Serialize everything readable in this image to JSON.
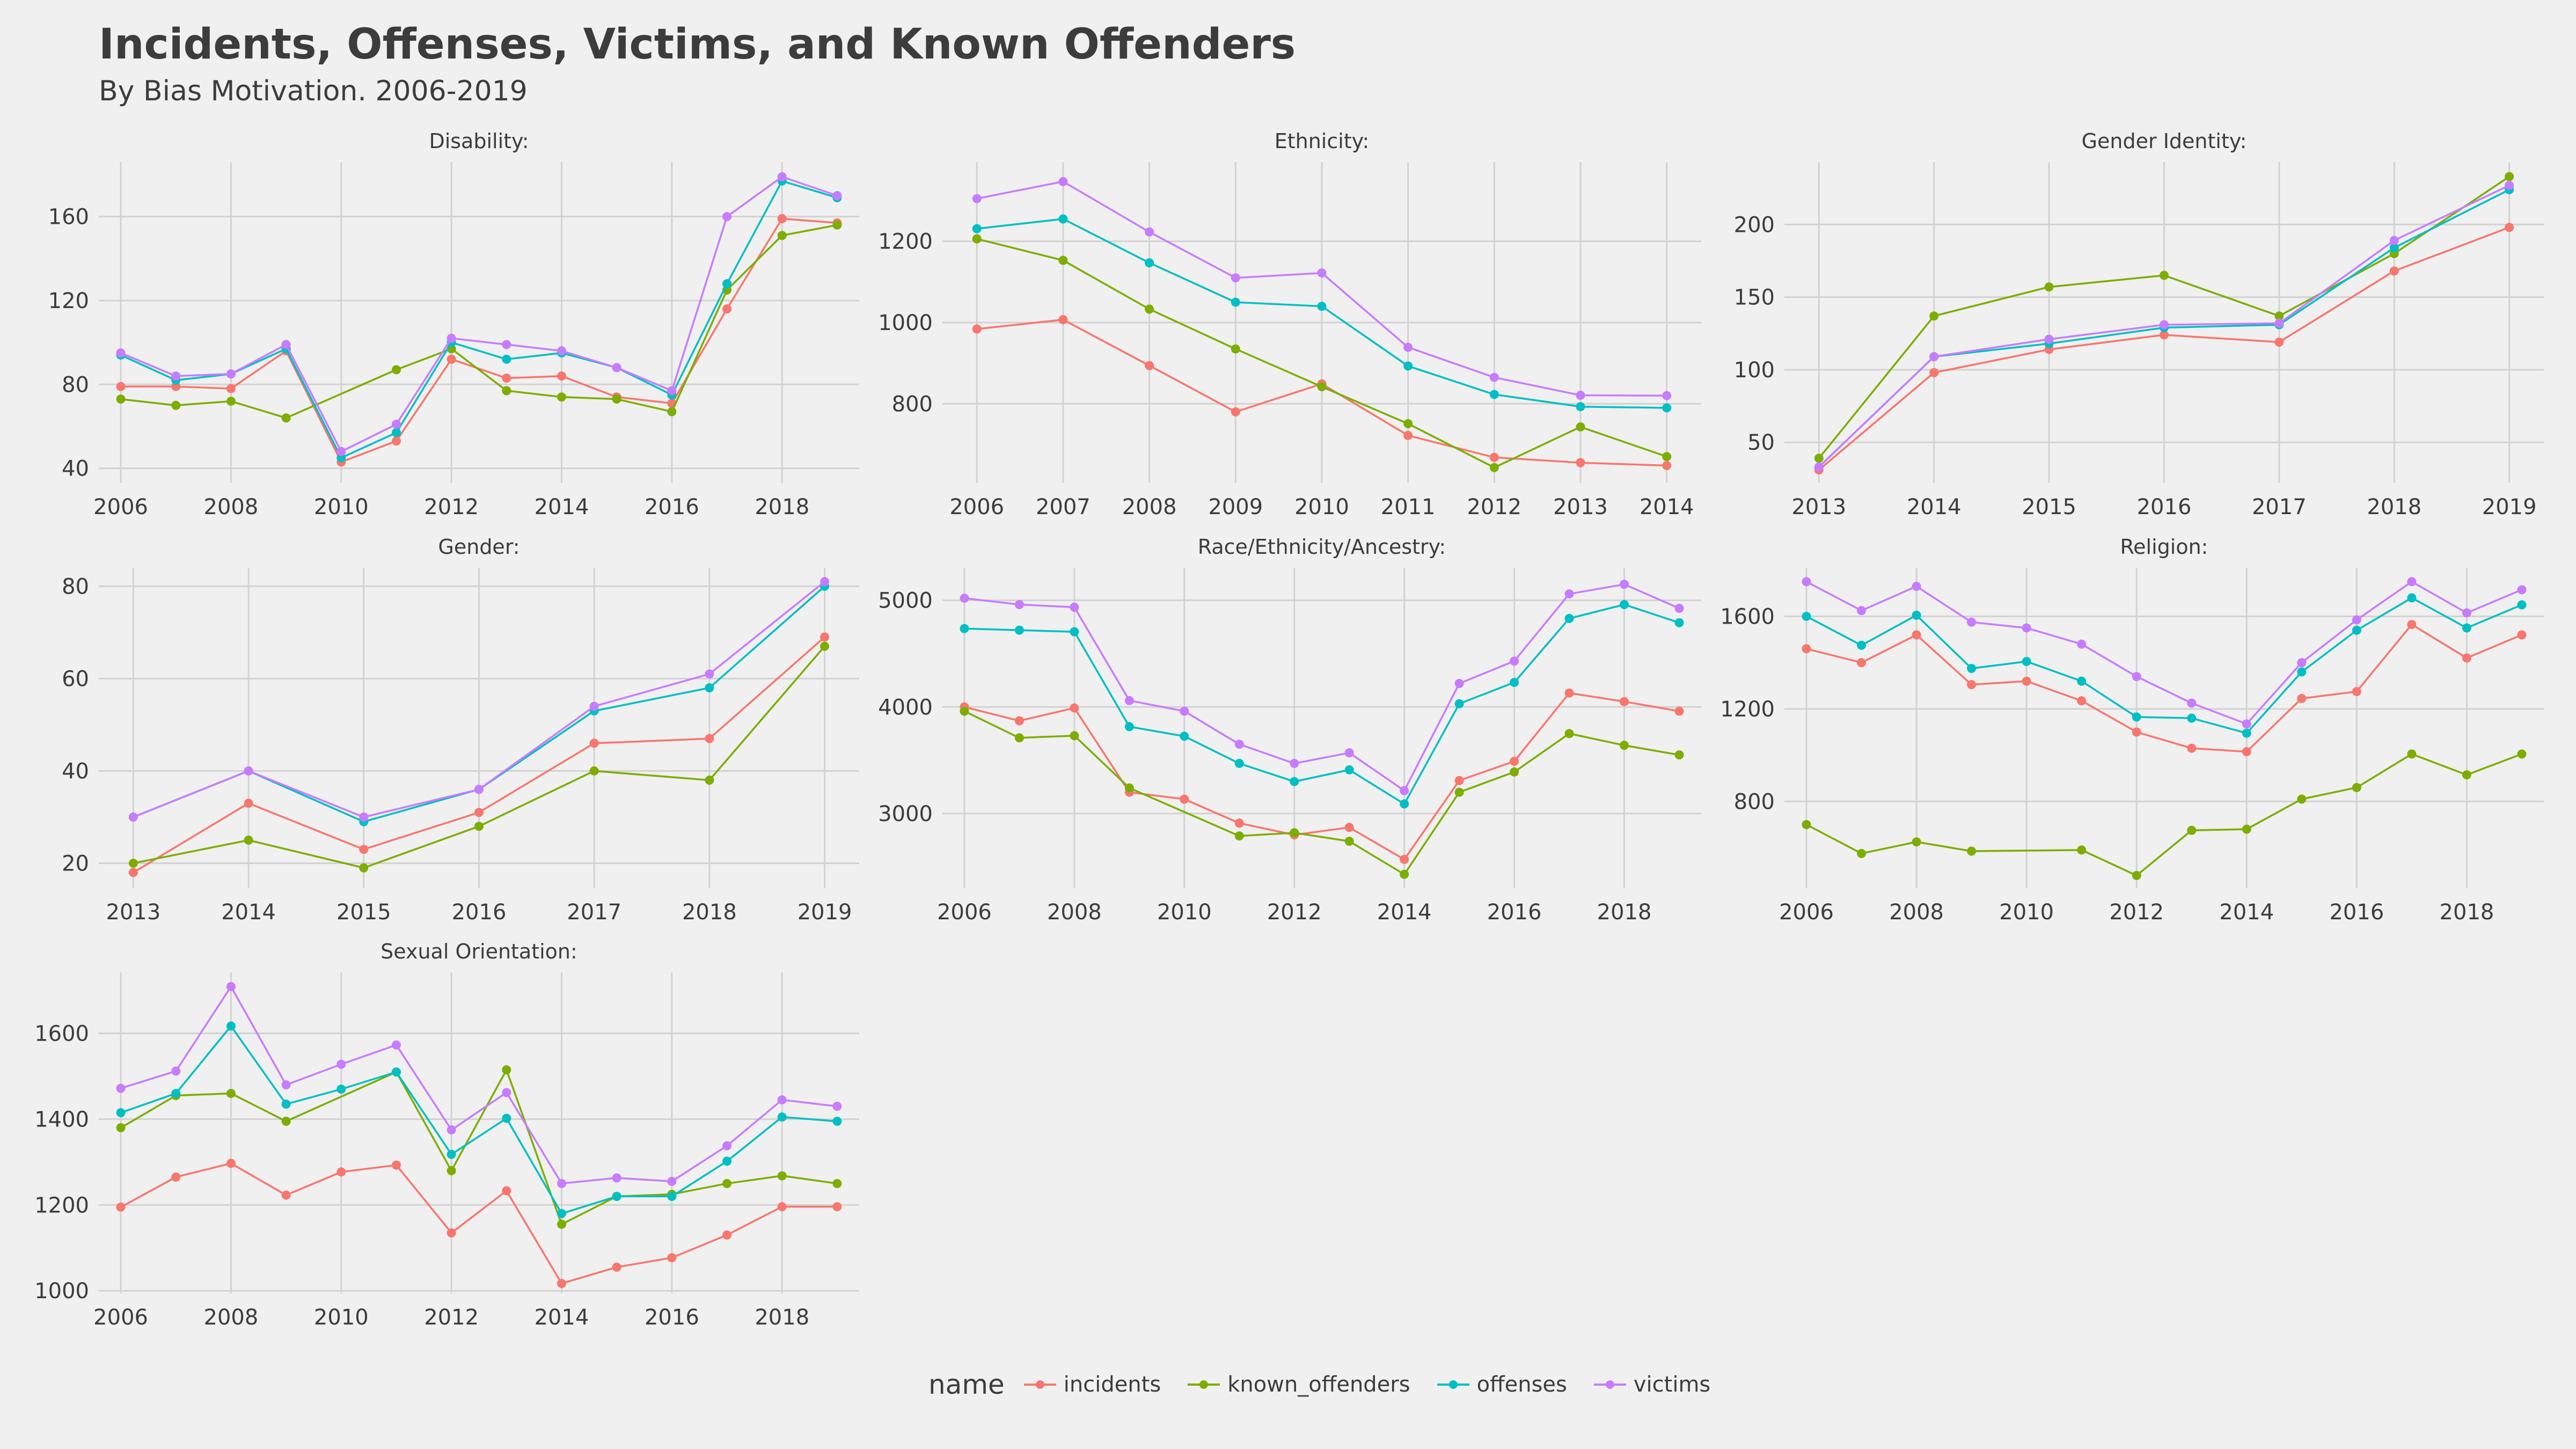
{
  "header": {
    "title": "Incidents, Offenses, Victims, and Known Offenders",
    "subtitle": "By Bias Motivation. 2006-2019"
  },
  "colors": {
    "incidents": "#f8766d",
    "known_offenders": "#7cae00",
    "offenses": "#00bfc4",
    "victims": "#c77cff",
    "grid": "#d2d2d2",
    "background": "#f0f0f0",
    "text": "#3c3c3c"
  },
  "legend": {
    "title": "name",
    "placement": "bottom",
    "items": [
      "incidents",
      "known_offenders",
      "offenses",
      "victims"
    ]
  },
  "chart_data": [
    {
      "type": "line",
      "title": "Disability:",
      "x": [
        2006,
        2007,
        2008,
        2009,
        2010,
        2011,
        2012,
        2013,
        2014,
        2015,
        2016,
        2017,
        2018,
        2019
      ],
      "xticks": [
        2006,
        2008,
        2010,
        2012,
        2014,
        2016,
        2018
      ],
      "yticks": [
        40,
        80,
        120,
        160
      ],
      "xlim": [
        2005.6,
        2019.4
      ],
      "ylim": [
        33,
        186
      ],
      "grid": true,
      "series": [
        {
          "name": "incidents",
          "values": [
            79,
            79,
            78,
            96,
            43,
            53,
            92,
            83,
            84,
            74,
            71,
            116,
            159,
            157
          ]
        },
        {
          "name": "known_offenders",
          "values": [
            73,
            70,
            72,
            64,
            null,
            87,
            97,
            77,
            74,
            73,
            67,
            125,
            151,
            156
          ]
        },
        {
          "name": "offenses",
          "values": [
            94,
            82,
            85,
            97,
            45,
            57,
            100,
            92,
            95,
            88,
            75,
            128,
            177,
            169
          ]
        },
        {
          "name": "victims",
          "values": [
            95,
            84,
            85,
            99,
            48,
            61,
            102,
            99,
            96,
            88,
            77,
            160,
            179,
            170
          ]
        }
      ]
    },
    {
      "type": "line",
      "title": "Ethnicity:",
      "x": [
        2006,
        2007,
        2008,
        2009,
        2010,
        2011,
        2012,
        2013,
        2014
      ],
      "xticks": [
        2006,
        2007,
        2008,
        2009,
        2010,
        2011,
        2012,
        2013,
        2014
      ],
      "yticks": [
        800,
        1000,
        1200
      ],
      "xlim": [
        2005.6,
        2014.4
      ],
      "ylim": [
        605,
        1395
      ],
      "grid": true,
      "series": [
        {
          "name": "incidents",
          "values": [
            984,
            1007,
            894,
            780,
            849,
            722,
            668,
            655,
            648
          ]
        },
        {
          "name": "known_offenders",
          "values": [
            1206,
            1153,
            1033,
            935,
            842,
            751,
            643,
            743,
            670
          ]
        },
        {
          "name": "offenses",
          "values": [
            1231,
            1255,
            1147,
            1050,
            1040,
            893,
            823,
            793,
            790
          ]
        },
        {
          "name": "victims",
          "values": [
            1305,
            1347,
            1223,
            1110,
            1122,
            939,
            865,
            821,
            820
          ]
        }
      ]
    },
    {
      "type": "line",
      "title": "Gender Identity:",
      "x": [
        2013,
        2014,
        2015,
        2016,
        2017,
        2018,
        2019
      ],
      "xticks": [
        2013,
        2014,
        2015,
        2016,
        2017,
        2018,
        2019
      ],
      "yticks": [
        50,
        100,
        150,
        200
      ],
      "xlim": [
        2012.7,
        2019.3
      ],
      "ylim": [
        22,
        243
      ],
      "grid": true,
      "series": [
        {
          "name": "incidents",
          "values": [
            31,
            98,
            114,
            124,
            119,
            168,
            198
          ]
        },
        {
          "name": "known_offenders",
          "values": [
            39,
            137,
            157,
            165,
            137,
            180,
            233
          ]
        },
        {
          "name": "offenses",
          "values": [
            33,
            109,
            118,
            129,
            131,
            184,
            224
          ]
        },
        {
          "name": "victims",
          "values": [
            33,
            109,
            121,
            131,
            132,
            189,
            227
          ]
        }
      ]
    },
    {
      "type": "line",
      "title": "Gender:",
      "x": [
        2013,
        2014,
        2015,
        2016,
        2017,
        2018,
        2019
      ],
      "xticks": [
        2013,
        2014,
        2015,
        2016,
        2017,
        2018,
        2019
      ],
      "yticks": [
        20,
        40,
        60,
        80
      ],
      "xlim": [
        2012.7,
        2019.3
      ],
      "ylim": [
        14.6,
        84
      ],
      "grid": true,
      "series": [
        {
          "name": "incidents",
          "values": [
            18,
            33,
            23,
            31,
            46,
            47,
            69
          ]
        },
        {
          "name": "known_offenders",
          "values": [
            20,
            25,
            19,
            28,
            40,
            38,
            67
          ]
        },
        {
          "name": "offenses",
          "values": [
            30,
            40,
            29,
            36,
            53,
            58,
            80
          ]
        },
        {
          "name": "victims",
          "values": [
            30,
            40,
            30,
            36,
            54,
            61,
            81
          ]
        }
      ]
    },
    {
      "type": "line",
      "title": "Race/Ethnicity/Ancestry:",
      "x": [
        2006,
        2007,
        2008,
        2009,
        2010,
        2011,
        2012,
        2013,
        2014,
        2015,
        2016,
        2017,
        2018,
        2019
      ],
      "xticks": [
        2006,
        2008,
        2010,
        2012,
        2014,
        2016,
        2018
      ],
      "yticks": [
        3000,
        4000,
        5000
      ],
      "xlim": [
        2005.6,
        2019.4
      ],
      "ylim": [
        2300,
        5305
      ],
      "grid": true,
      "series": [
        {
          "name": "incidents",
          "values": [
            4000,
            3870,
            3990,
            3200,
            3135,
            2910,
            2800,
            2870,
            2570,
            3310,
            3490,
            4130,
            4050,
            3960
          ]
        },
        {
          "name": "known_offenders",
          "values": [
            3960,
            3710,
            3730,
            3240,
            null,
            2790,
            2820,
            2740,
            2430,
            3200,
            3390,
            3750,
            3640,
            3550
          ]
        },
        {
          "name": "offenses",
          "values": [
            4735,
            4720,
            4705,
            3815,
            3725,
            3470,
            3300,
            3410,
            3090,
            4030,
            4230,
            4830,
            4960,
            4790
          ]
        },
        {
          "name": "victims",
          "values": [
            5020,
            4960,
            4935,
            4060,
            3960,
            3650,
            3470,
            3570,
            3215,
            4220,
            4430,
            5060,
            5150,
            4925
          ]
        }
      ]
    },
    {
      "type": "line",
      "title": "Religion:",
      "x": [
        2006,
        2007,
        2008,
        2009,
        2010,
        2011,
        2012,
        2013,
        2014,
        2015,
        2016,
        2017,
        2018,
        2019
      ],
      "xticks": [
        2006,
        2008,
        2010,
        2012,
        2014,
        2016,
        2018
      ],
      "yticks": [
        800,
        1200,
        1600
      ],
      "xlim": [
        2005.6,
        2019.4
      ],
      "ylim": [
        425,
        1810
      ],
      "grid": true,
      "series": [
        {
          "name": "incidents",
          "values": [
            1460,
            1400,
            1520,
            1305,
            1320,
            1235,
            1100,
            1030,
            1015,
            1245,
            1275,
            1565,
            1420,
            1520
          ]
        },
        {
          "name": "known_offenders",
          "values": [
            700,
            575,
            625,
            585,
            null,
            590,
            480,
            675,
            680,
            810,
            860,
            1005,
            915,
            1005
          ]
        },
        {
          "name": "offenses",
          "values": [
            1600,
            1475,
            1605,
            1375,
            1405,
            1320,
            1165,
            1160,
            1095,
            1360,
            1540,
            1680,
            1550,
            1650
          ]
        },
        {
          "name": "victims",
          "values": [
            1750,
            1625,
            1730,
            1575,
            1550,
            1480,
            1340,
            1225,
            1135,
            1400,
            1585,
            1750,
            1615,
            1715
          ]
        }
      ]
    },
    {
      "type": "line",
      "title": "Sexual Orientation:",
      "x": [
        2006,
        2007,
        2008,
        2009,
        2010,
        2011,
        2012,
        2013,
        2014,
        2015,
        2016,
        2017,
        2018,
        2019
      ],
      "xticks": [
        2006,
        2008,
        2010,
        2012,
        2014,
        2016,
        2018
      ],
      "yticks": [
        1000,
        1200,
        1400,
        1600
      ],
      "xlim": [
        2005.6,
        2019.4
      ],
      "ylim": [
        994,
        1742
      ],
      "grid": true,
      "series": [
        {
          "name": "incidents",
          "values": [
            1195,
            1265,
            1297,
            1223,
            1277,
            1293,
            1135,
            1233,
            1017,
            1055,
            1077,
            1130,
            1196,
            1196
          ]
        },
        {
          "name": "known_offenders",
          "values": [
            1380,
            1455,
            1460,
            1395,
            null,
            1510,
            1280,
            1515,
            1155,
            1220,
            1225,
            1250,
            1268,
            1250
          ]
        },
        {
          "name": "offenses",
          "values": [
            1415,
            1460,
            1617,
            1435,
            1470,
            1510,
            1318,
            1402,
            1180,
            1220,
            1220,
            1302,
            1405,
            1395
          ]
        },
        {
          "name": "victims",
          "values": [
            1472,
            1512,
            1709,
            1480,
            1528,
            1573,
            1375,
            1462,
            1250,
            1263,
            1255,
            1338,
            1445,
            1430
          ]
        }
      ]
    }
  ]
}
